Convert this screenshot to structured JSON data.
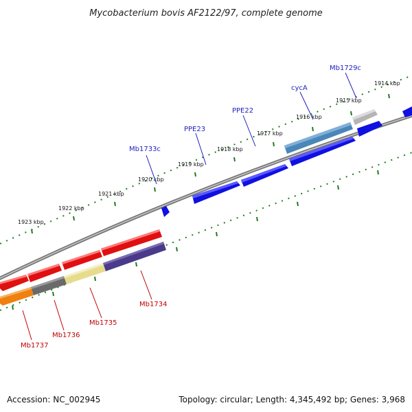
{
  "title": "Mycobacterium bovis AF2122/97, complete genome",
  "footer": {
    "accession": "Accession: NC_002945",
    "summary": "Topology: circular; Length: 4,345,492 bp; Genes: 3,968"
  },
  "ticks": [
    "1923 kbp",
    "1922 kbp",
    "1921 kbp",
    "1920 kbp",
    "1919 kbp",
    "1918 kbp",
    "1917 kbp",
    "1916 kbp",
    "1915 kbp",
    "1914 kbp"
  ],
  "genes_top": [
    "Mb1733c",
    "PPE23",
    "PPE22",
    "cycA",
    "Mb1729c"
  ],
  "genes_bottom": [
    "Mb1734",
    "Mb1735",
    "Mb1736",
    "Mb1737"
  ],
  "colors": {
    "backbone": "#808080",
    "tick": "#1f7a1f",
    "forward_blue": "#1010e0",
    "steelblue": "#4a86b8",
    "red": "#e01010",
    "orange": "#f08010",
    "gray": "#6a6a6a",
    "khaki": "#e6dc8c",
    "purple": "#4a3a8a",
    "light_gray": "#b4b4b4"
  }
}
